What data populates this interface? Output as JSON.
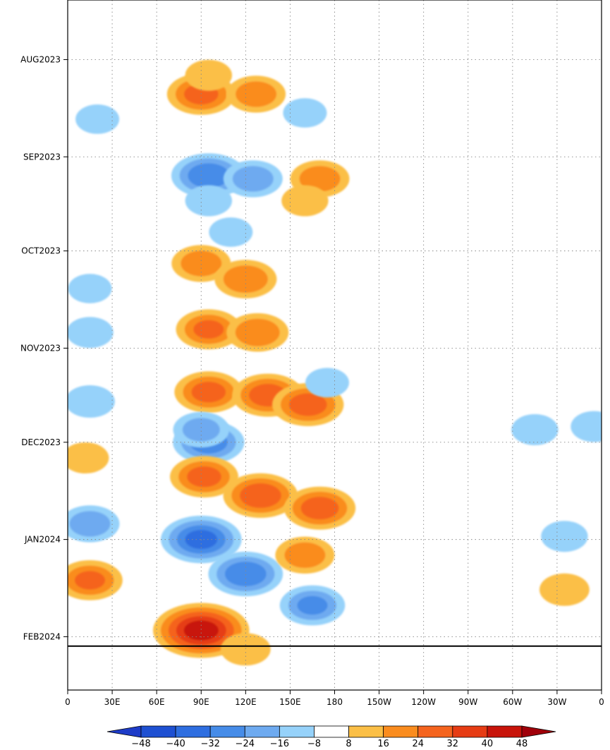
{
  "chart_data": {
    "type": "heatmap",
    "title": "",
    "xlabel": "",
    "ylabel": "",
    "x_tick_labels": [
      "0",
      "30E",
      "60E",
      "90E",
      "120E",
      "150E",
      "180",
      "150W",
      "120W",
      "90W",
      "60W",
      "30W",
      "0"
    ],
    "x_range_deg_east": [
      0,
      360
    ],
    "y_tick_labels": [
      "AUG2023",
      "SEP2023",
      "OCT2023",
      "NOV2023",
      "DEC2023",
      "JAN2024",
      "FEB2024"
    ],
    "y_tick_dates": [
      "2023-08-01",
      "2023-09-01",
      "2023-10-01",
      "2023-11-01",
      "2023-12-01",
      "2024-01-01",
      "2024-02-01"
    ],
    "y_range_dates": [
      "2023-07-13",
      "2024-02-18"
    ],
    "reference_line_date": "2024-02-04",
    "grid": true,
    "color_levels": [
      -48,
      -40,
      -32,
      -24,
      -16,
      -8,
      8,
      16,
      24,
      32,
      40,
      48
    ],
    "color_labels": [
      "-48",
      "-40",
      "-32",
      "-24",
      "-16",
      "-8",
      "8",
      "16",
      "24",
      "32",
      "40",
      "48"
    ],
    "colors": {
      "below_-48": "#1e3cc8",
      "-48_-40": "#1e50d2",
      "-40_-32": "#2e6ee0",
      "-32_-24": "#468ce8",
      "-24_-16": "#6eaaf0",
      "-16_-8": "#96d2fa",
      "-8_8": "#ffffff",
      "8_16": "#fbbf46",
      "16_24": "#fa8c1e",
      "24_32": "#f5641e",
      "32_40": "#e63c14",
      "40_48": "#c8140a",
      "above_48": "#a0000a"
    },
    "anomaly_features": [
      {
        "date": "2023-08-12",
        "lon": 90,
        "value": 26
      },
      {
        "date": "2023-08-12",
        "lon": 127,
        "value": 20
      },
      {
        "date": "2023-08-06",
        "lon": 95,
        "value": 12
      },
      {
        "date": "2023-08-18",
        "lon": 160,
        "value": -10
      },
      {
        "date": "2023-08-20",
        "lon": 20,
        "value": -10
      },
      {
        "date": "2023-09-07",
        "lon": 95,
        "value": -30
      },
      {
        "date": "2023-09-08",
        "lon": 125,
        "value": -20
      },
      {
        "date": "2023-09-08",
        "lon": 170,
        "value": 20
      },
      {
        "date": "2023-09-15",
        "lon": 95,
        "value": -12
      },
      {
        "date": "2023-09-15",
        "lon": 160,
        "value": 12
      },
      {
        "date": "2023-09-25",
        "lon": 110,
        "value": -10
      },
      {
        "date": "2023-10-05",
        "lon": 90,
        "value": 20
      },
      {
        "date": "2023-10-10",
        "lon": 120,
        "value": 22
      },
      {
        "date": "2023-10-13",
        "lon": 15,
        "value": -10
      },
      {
        "date": "2023-10-26",
        "lon": 95,
        "value": 24
      },
      {
        "date": "2023-10-27",
        "lon": 128,
        "value": 22
      },
      {
        "date": "2023-10-27",
        "lon": 15,
        "value": -12
      },
      {
        "date": "2023-11-15",
        "lon": 95,
        "value": 26
      },
      {
        "date": "2023-11-16",
        "lon": 135,
        "value": 28
      },
      {
        "date": "2023-11-19",
        "lon": 162,
        "value": 28
      },
      {
        "date": "2023-11-18",
        "lon": 15,
        "value": -14
      },
      {
        "date": "2023-11-12",
        "lon": 175,
        "value": -10
      },
      {
        "date": "2023-12-01",
        "lon": 95,
        "value": -28
      },
      {
        "date": "2023-11-27",
        "lon": 90,
        "value": -18
      },
      {
        "date": "2023-12-06",
        "lon": 12,
        "value": 12
      },
      {
        "date": "2023-12-12",
        "lon": 92,
        "value": 26
      },
      {
        "date": "2023-12-18",
        "lon": 130,
        "value": 30
      },
      {
        "date": "2023-12-22",
        "lon": 170,
        "value": 28
      },
      {
        "date": "2023-12-27",
        "lon": 15,
        "value": -20
      },
      {
        "date": "2024-01-01",
        "lon": 90,
        "value": -34
      },
      {
        "date": "2024-01-12",
        "lon": 120,
        "value": -30
      },
      {
        "date": "2024-01-22",
        "lon": 165,
        "value": -24
      },
      {
        "date": "2024-01-06",
        "lon": 160,
        "value": 20
      },
      {
        "date": "2024-01-14",
        "lon": 15,
        "value": 24
      },
      {
        "date": "2024-01-30",
        "lon": 90,
        "value": 44
      },
      {
        "date": "2024-02-05",
        "lon": 120,
        "value": 14
      },
      {
        "date": "2024-01-17",
        "lon": 335,
        "value": 14
      },
      {
        "date": "2023-12-31",
        "lon": 335,
        "value": -12
      },
      {
        "date": "2023-11-27",
        "lon": 315,
        "value": -12
      },
      {
        "date": "2023-11-26",
        "lon": 355,
        "value": -12
      }
    ]
  }
}
